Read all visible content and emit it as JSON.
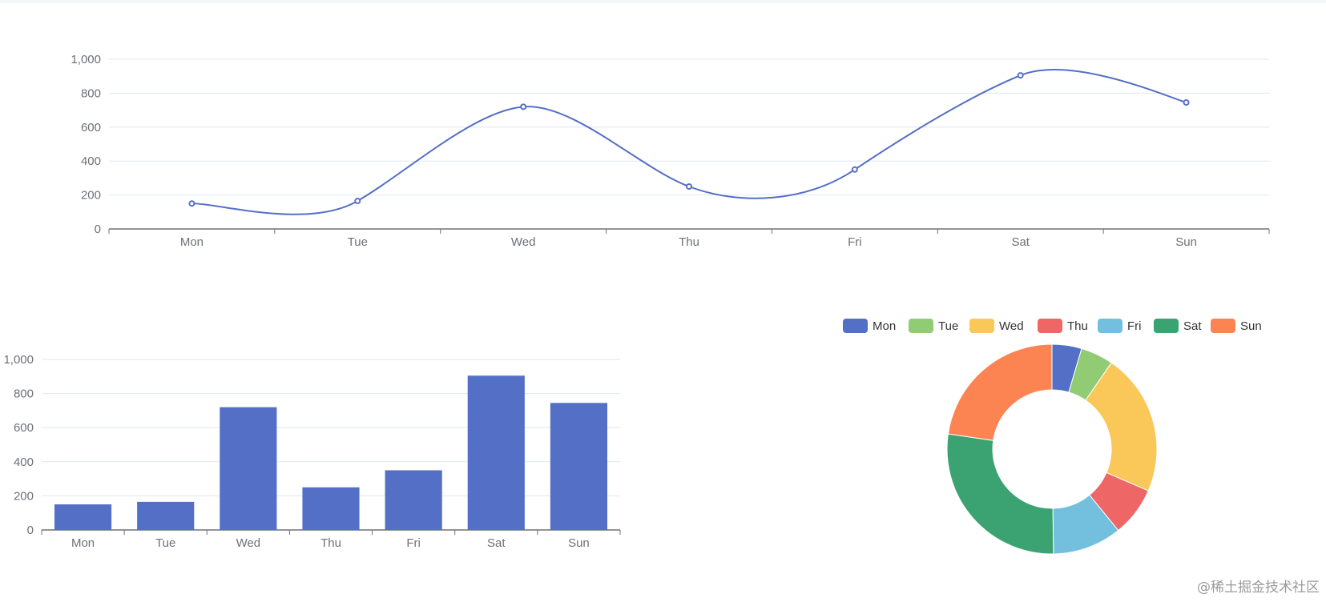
{
  "colors": {
    "primary": "#5470c6",
    "palette": [
      "#5470c6",
      "#91cc75",
      "#fac858",
      "#ee6666",
      "#73c0de",
      "#3ba272",
      "#fc8452"
    ],
    "grid": "#e0e6f1",
    "axis": "#6e7079"
  },
  "chart_data": [
    {
      "type": "line",
      "smooth": true,
      "categories": [
        "Mon",
        "Tue",
        "Wed",
        "Thu",
        "Fri",
        "Sat",
        "Sun"
      ],
      "values": [
        150,
        165,
        720,
        250,
        350,
        905,
        745
      ],
      "ylim": [
        0,
        1000
      ],
      "yticks": [
        "0",
        "200",
        "400",
        "600",
        "800",
        "1,000"
      ],
      "grid": true
    },
    {
      "type": "bar",
      "categories": [
        "Mon",
        "Tue",
        "Wed",
        "Thu",
        "Fri",
        "Sat",
        "Sun"
      ],
      "values": [
        150,
        165,
        720,
        250,
        350,
        905,
        745
      ],
      "ylim": [
        0,
        1000
      ],
      "yticks": [
        "0",
        "200",
        "400",
        "600",
        "800",
        "1,000"
      ],
      "grid": true
    },
    {
      "type": "pie",
      "donut": true,
      "legend": "top",
      "categories": [
        "Mon",
        "Tue",
        "Wed",
        "Thu",
        "Fri",
        "Sat",
        "Sun"
      ],
      "values": [
        150,
        165,
        720,
        250,
        350,
        905,
        745
      ]
    }
  ],
  "watermark": "@稀土掘金技术社区"
}
